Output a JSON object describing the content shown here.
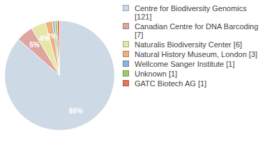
{
  "chart_data": {
    "type": "pie",
    "categories": [
      "Centre for Biodiversity Genomics [121]",
      "Canadian Centre for DNA Barcoding [7]",
      "Naturalis Biodiversity Center [6]",
      "Natural History Museum, London [3]",
      "Wellcome Sanger Institute [1]",
      "Unknown [1]",
      "GATC Biotech AG [1]"
    ],
    "values": [
      86.4,
      5,
      4.3,
      2.1,
      0.7,
      0.7,
      0.7
    ],
    "value_labels": [
      "86%",
      "5%",
      "4%",
      "2%",
      null,
      null,
      null
    ],
    "colors": [
      "#cdd9e5",
      "#dfa69f",
      "#e5e6a7",
      "#f0b07b",
      "#8eb3d8",
      "#9bcc6a",
      "#e6755c"
    ],
    "data_labels": true,
    "legend": "right"
  }
}
